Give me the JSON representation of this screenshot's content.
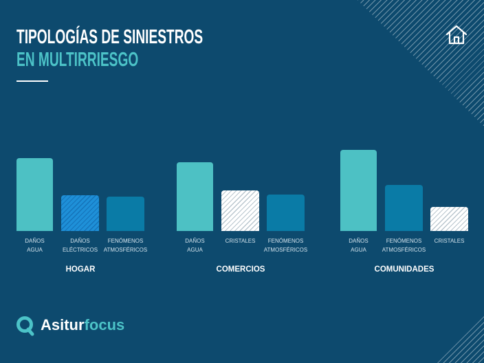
{
  "nav": {
    "home_icon": "home-icon"
  },
  "brand": {
    "logo_icon": "magnifier-q-icon",
    "name_part1": "Asitur",
    "name_part2": "focus"
  },
  "colors": {
    "background": "#0d4a6e",
    "title": "#ffffff",
    "title_accent": "#4cc3c8",
    "label_text": "#d3e3ec",
    "stripes": "rgba(255,255,255,0.42)"
  },
  "chart_data": {
    "type": "bar",
    "title": [
      "TIPOLOGÍAS DE SINIESTROS",
      "EN MULTIRRIESGO"
    ],
    "grid": false,
    "groups": [
      {
        "name": "HOGAR",
        "bars": [
          {
            "label": [
              "DAÑOS",
              "AGUA"
            ],
            "value": 0.9,
            "color": "#4dc1c4"
          },
          {
            "label": [
              "DAÑOS",
              "ELÉCTRICOS"
            ],
            "value": 0.44,
            "color": "#1e90d8",
            "hatch_color": "#1573b9"
          },
          {
            "label": [
              "FENÓMENOS",
              "ATMOSFÉRICOS"
            ],
            "value": 0.42,
            "color": "#0a7ba6"
          }
        ]
      },
      {
        "name": "COMERCIOS",
        "bars": [
          {
            "label": [
              "DAÑOS",
              "AGUA"
            ],
            "value": 0.85,
            "color": "#4dc1c4"
          },
          {
            "label": [
              "CRISTALES"
            ],
            "value": 0.5,
            "color": "#ffffff",
            "hatch_color": "#b9c6ce"
          },
          {
            "label": [
              "FENÓMENOS",
              "ATMOSFÉRICOS"
            ],
            "value": 0.45,
            "color": "#0a7ba6"
          }
        ]
      },
      {
        "name": "COMUNIDADES",
        "bars": [
          {
            "label": [
              "DAÑOS",
              "AGUA"
            ],
            "value": 1.0,
            "color": "#4dc1c4"
          },
          {
            "label": [
              "FENÓMENOS",
              "ATMOSFÉRICOS"
            ],
            "value": 0.57,
            "color": "#0a7ba6"
          },
          {
            "label": [
              "CRISTALES"
            ],
            "value": 0.3,
            "color": "#ffffff",
            "hatch_color": "#b9c6ce"
          }
        ]
      }
    ]
  }
}
